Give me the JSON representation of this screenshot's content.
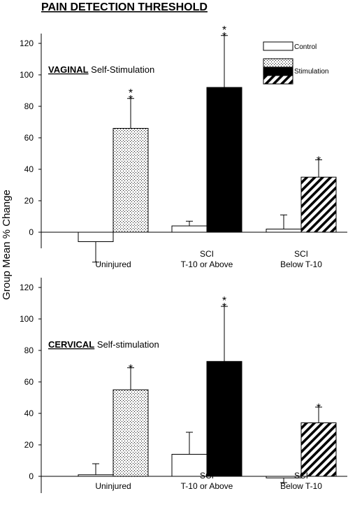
{
  "figure": {
    "title": "PAIN DETECTION THRESHOLD",
    "ylabel": "Group Mean % Change"
  },
  "legend": [
    {
      "label": "Control",
      "pattern": "white"
    },
    {
      "label": "Stimulation",
      "pattern": "black"
    }
  ],
  "colors": {
    "ink": "#000000",
    "paper": "#ffffff"
  },
  "chart_data": [
    {
      "type": "bar",
      "title": "VAGINAL Self-Stimulation",
      "title_bold": "VAGINAL",
      "title_rest": " Self-Stimulation",
      "ylabel": "Group Mean % Change",
      "ylim": [
        -10,
        130
      ],
      "yticks": [
        0,
        20,
        40,
        60,
        80,
        100,
        120
      ],
      "grid": false,
      "legend_position": "top-right",
      "categories": [
        {
          "lines": [
            "Uninjured"
          ]
        },
        {
          "lines": [
            "SCI",
            "T-10 or Above"
          ]
        },
        {
          "lines": [
            "SCI",
            "Below T-10"
          ]
        }
      ],
      "series": [
        {
          "name": "Control",
          "values": [
            -6,
            4,
            2
          ],
          "errors": [
            13,
            3,
            9
          ]
        },
        {
          "name": "Stimulation",
          "values": [
            66,
            92,
            35
          ],
          "errors": [
            19,
            33,
            11
          ],
          "patterns": [
            "dots",
            "black",
            "hatch"
          ],
          "significance": [
            "**",
            "**",
            "*"
          ]
        }
      ]
    },
    {
      "type": "bar",
      "title": "CERVICAL Self-stimulation",
      "title_bold": "CERVICAL",
      "title_rest": " Self-stimulation",
      "ylabel": "Group Mean % Change",
      "ylim": [
        -10,
        130
      ],
      "yticks": [
        0,
        20,
        40,
        60,
        80,
        100,
        120
      ],
      "grid": false,
      "categories": [
        {
          "lines": [
            "Uninjured"
          ]
        },
        {
          "lines": [
            "SCI",
            "T-10 or Above"
          ]
        },
        {
          "lines": [
            "SCI",
            "Below T-10"
          ]
        }
      ],
      "series": [
        {
          "name": "Control",
          "values": [
            1,
            14,
            -1
          ],
          "errors": [
            7,
            14,
            3
          ]
        },
        {
          "name": "Stimulation",
          "values": [
            55,
            73,
            34
          ],
          "errors": [
            14,
            35,
            10
          ],
          "patterns": [
            "dots",
            "black",
            "hatch"
          ],
          "significance": [
            "*",
            "**",
            "*"
          ]
        }
      ]
    }
  ]
}
